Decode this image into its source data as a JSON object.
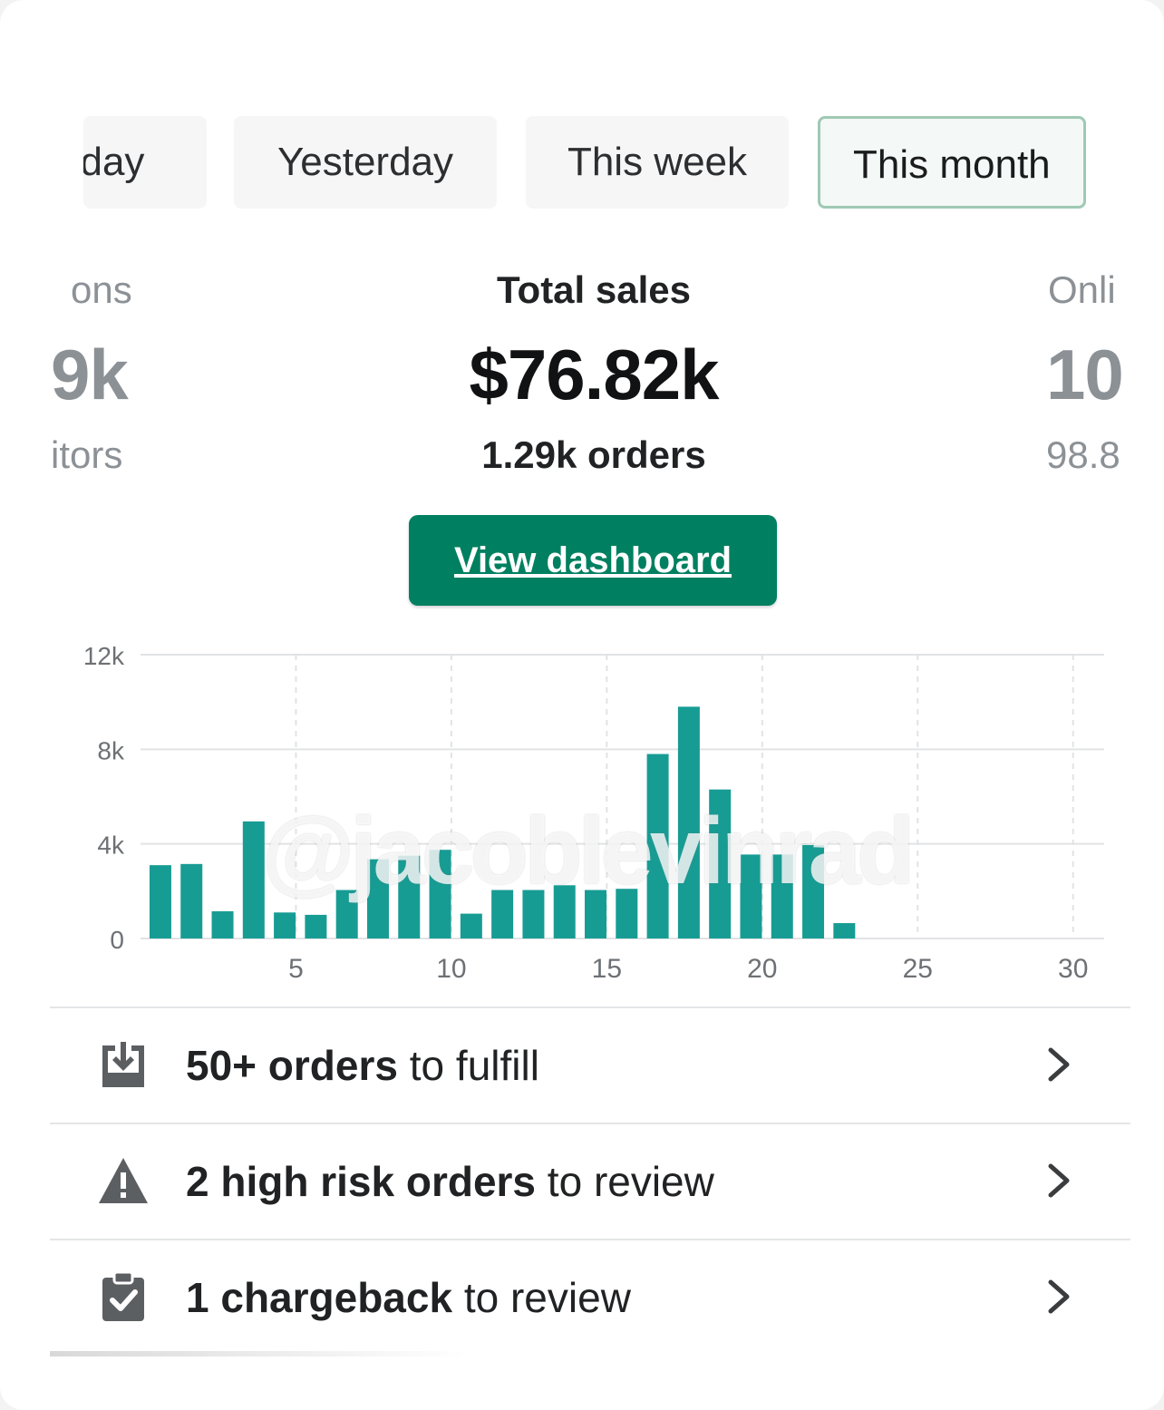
{
  "tabs": [
    {
      "label": "Today",
      "visible_label": "oday",
      "selected": false
    },
    {
      "label": "Yesterday",
      "selected": false
    },
    {
      "label": "This week",
      "selected": false
    },
    {
      "label": "This month",
      "selected": true
    }
  ],
  "metrics": {
    "left": {
      "label": "ons",
      "value": "9k",
      "sub": "itors"
    },
    "center": {
      "label": "Total sales",
      "value": "$76.82k",
      "sub": "1.29k orders"
    },
    "right": {
      "label": "Onli",
      "value": "10",
      "sub": "98.8"
    }
  },
  "view_dashboard_label": "View dashboard",
  "watermark": "@jacoblevinrad",
  "chart_data": {
    "type": "bar",
    "x": [
      1,
      2,
      3,
      4,
      5,
      6,
      7,
      8,
      9,
      10,
      11,
      12,
      13,
      14,
      15,
      16,
      17,
      18,
      19,
      20,
      21,
      22,
      23
    ],
    "values": [
      3100,
      3150,
      1150,
      4950,
      1100,
      1000,
      2050,
      3350,
      3500,
      3750,
      1050,
      2050,
      2050,
      2250,
      2050,
      2100,
      7800,
      9800,
      6300,
      3550,
      3550,
      3950,
      650
    ],
    "x_ticks": [
      5,
      10,
      15,
      20,
      25,
      30
    ],
    "x_tick_labels": [
      "5",
      "10",
      "15",
      "20",
      "25",
      "30"
    ],
    "y_ticks": [
      0,
      4000,
      8000,
      12000
    ],
    "y_tick_labels": [
      "0",
      "4k",
      "8k",
      "12k"
    ],
    "xlim": [
      0,
      31
    ],
    "ylim": [
      0,
      12000
    ],
    "bar_color": "#179c94",
    "grid": true
  },
  "tasks": [
    {
      "icon": "download-box-icon",
      "bold": "50+ orders",
      "rest": " to fulfill"
    },
    {
      "icon": "warning-icon",
      "bold": "2 high risk orders",
      "rest": " to review"
    },
    {
      "icon": "clipboard-check-icon",
      "bold": "1 chargeback",
      "rest": " to review"
    }
  ]
}
